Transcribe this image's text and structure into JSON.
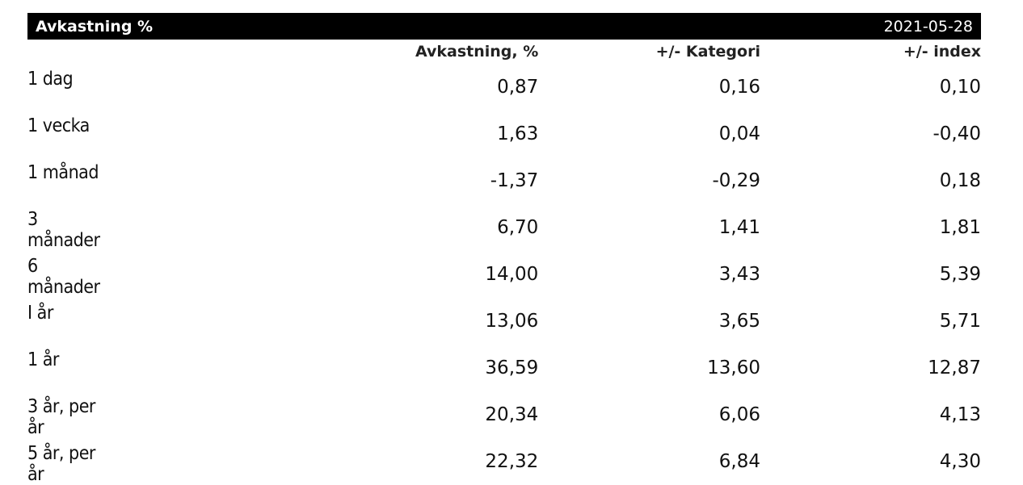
{
  "header": {
    "title": "Avkastning %",
    "date": "2021-05-28"
  },
  "table": {
    "columns": [
      "Avkastning, %",
      "+/- Kategori",
      "+/- index"
    ],
    "rows": [
      [
        "1 dag",
        "0,87",
        "0,16",
        "0,10"
      ],
      [
        "1 vecka",
        "1,63",
        "0,04",
        "-0,40"
      ],
      [
        "1 månad",
        "-1,37",
        "-0,29",
        "0,18"
      ],
      [
        "3 månader",
        "6,70",
        "1,41",
        "1,81"
      ],
      [
        "6 månader",
        "14,00",
        "3,43",
        "5,39"
      ],
      [
        "I år",
        "13,06",
        "3,65",
        "5,71"
      ],
      [
        "1 år",
        "36,59",
        "13,60",
        "12,87"
      ],
      [
        "3 år, per år",
        "20,34",
        "6,06",
        "4,13"
      ],
      [
        "5 år, per år",
        "22,32",
        "6,84",
        "4,30"
      ]
    ]
  }
}
